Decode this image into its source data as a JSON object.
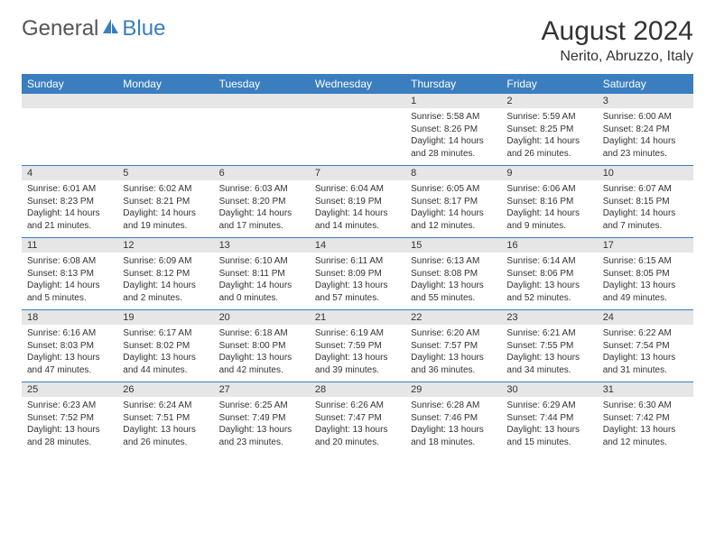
{
  "brand": {
    "general": "General",
    "blue": "Blue",
    "sail_color": "#3a7ebf"
  },
  "title": {
    "month": "August 2024",
    "location": "Nerito, Abruzzo, Italy"
  },
  "colors": {
    "header_bg": "#3a7ebf",
    "header_text": "#ffffff",
    "daynum_bg": "#e6e6e6",
    "cell_border": "#3a7ebf",
    "body_text": "#333333"
  },
  "weekdays": [
    "Sunday",
    "Monday",
    "Tuesday",
    "Wednesday",
    "Thursday",
    "Friday",
    "Saturday"
  ],
  "weeks": [
    [
      null,
      null,
      null,
      null,
      {
        "n": "1",
        "sr": "Sunrise: 5:58 AM",
        "ss": "Sunset: 8:26 PM",
        "d1": "Daylight: 14 hours",
        "d2": "and 28 minutes."
      },
      {
        "n": "2",
        "sr": "Sunrise: 5:59 AM",
        "ss": "Sunset: 8:25 PM",
        "d1": "Daylight: 14 hours",
        "d2": "and 26 minutes."
      },
      {
        "n": "3",
        "sr": "Sunrise: 6:00 AM",
        "ss": "Sunset: 8:24 PM",
        "d1": "Daylight: 14 hours",
        "d2": "and 23 minutes."
      }
    ],
    [
      {
        "n": "4",
        "sr": "Sunrise: 6:01 AM",
        "ss": "Sunset: 8:23 PM",
        "d1": "Daylight: 14 hours",
        "d2": "and 21 minutes."
      },
      {
        "n": "5",
        "sr": "Sunrise: 6:02 AM",
        "ss": "Sunset: 8:21 PM",
        "d1": "Daylight: 14 hours",
        "d2": "and 19 minutes."
      },
      {
        "n": "6",
        "sr": "Sunrise: 6:03 AM",
        "ss": "Sunset: 8:20 PM",
        "d1": "Daylight: 14 hours",
        "d2": "and 17 minutes."
      },
      {
        "n": "7",
        "sr": "Sunrise: 6:04 AM",
        "ss": "Sunset: 8:19 PM",
        "d1": "Daylight: 14 hours",
        "d2": "and 14 minutes."
      },
      {
        "n": "8",
        "sr": "Sunrise: 6:05 AM",
        "ss": "Sunset: 8:17 PM",
        "d1": "Daylight: 14 hours",
        "d2": "and 12 minutes."
      },
      {
        "n": "9",
        "sr": "Sunrise: 6:06 AM",
        "ss": "Sunset: 8:16 PM",
        "d1": "Daylight: 14 hours",
        "d2": "and 9 minutes."
      },
      {
        "n": "10",
        "sr": "Sunrise: 6:07 AM",
        "ss": "Sunset: 8:15 PM",
        "d1": "Daylight: 14 hours",
        "d2": "and 7 minutes."
      }
    ],
    [
      {
        "n": "11",
        "sr": "Sunrise: 6:08 AM",
        "ss": "Sunset: 8:13 PM",
        "d1": "Daylight: 14 hours",
        "d2": "and 5 minutes."
      },
      {
        "n": "12",
        "sr": "Sunrise: 6:09 AM",
        "ss": "Sunset: 8:12 PM",
        "d1": "Daylight: 14 hours",
        "d2": "and 2 minutes."
      },
      {
        "n": "13",
        "sr": "Sunrise: 6:10 AM",
        "ss": "Sunset: 8:11 PM",
        "d1": "Daylight: 14 hours",
        "d2": "and 0 minutes."
      },
      {
        "n": "14",
        "sr": "Sunrise: 6:11 AM",
        "ss": "Sunset: 8:09 PM",
        "d1": "Daylight: 13 hours",
        "d2": "and 57 minutes."
      },
      {
        "n": "15",
        "sr": "Sunrise: 6:13 AM",
        "ss": "Sunset: 8:08 PM",
        "d1": "Daylight: 13 hours",
        "d2": "and 55 minutes."
      },
      {
        "n": "16",
        "sr": "Sunrise: 6:14 AM",
        "ss": "Sunset: 8:06 PM",
        "d1": "Daylight: 13 hours",
        "d2": "and 52 minutes."
      },
      {
        "n": "17",
        "sr": "Sunrise: 6:15 AM",
        "ss": "Sunset: 8:05 PM",
        "d1": "Daylight: 13 hours",
        "d2": "and 49 minutes."
      }
    ],
    [
      {
        "n": "18",
        "sr": "Sunrise: 6:16 AM",
        "ss": "Sunset: 8:03 PM",
        "d1": "Daylight: 13 hours",
        "d2": "and 47 minutes."
      },
      {
        "n": "19",
        "sr": "Sunrise: 6:17 AM",
        "ss": "Sunset: 8:02 PM",
        "d1": "Daylight: 13 hours",
        "d2": "and 44 minutes."
      },
      {
        "n": "20",
        "sr": "Sunrise: 6:18 AM",
        "ss": "Sunset: 8:00 PM",
        "d1": "Daylight: 13 hours",
        "d2": "and 42 minutes."
      },
      {
        "n": "21",
        "sr": "Sunrise: 6:19 AM",
        "ss": "Sunset: 7:59 PM",
        "d1": "Daylight: 13 hours",
        "d2": "and 39 minutes."
      },
      {
        "n": "22",
        "sr": "Sunrise: 6:20 AM",
        "ss": "Sunset: 7:57 PM",
        "d1": "Daylight: 13 hours",
        "d2": "and 36 minutes."
      },
      {
        "n": "23",
        "sr": "Sunrise: 6:21 AM",
        "ss": "Sunset: 7:55 PM",
        "d1": "Daylight: 13 hours",
        "d2": "and 34 minutes."
      },
      {
        "n": "24",
        "sr": "Sunrise: 6:22 AM",
        "ss": "Sunset: 7:54 PM",
        "d1": "Daylight: 13 hours",
        "d2": "and 31 minutes."
      }
    ],
    [
      {
        "n": "25",
        "sr": "Sunrise: 6:23 AM",
        "ss": "Sunset: 7:52 PM",
        "d1": "Daylight: 13 hours",
        "d2": "and 28 minutes."
      },
      {
        "n": "26",
        "sr": "Sunrise: 6:24 AM",
        "ss": "Sunset: 7:51 PM",
        "d1": "Daylight: 13 hours",
        "d2": "and 26 minutes."
      },
      {
        "n": "27",
        "sr": "Sunrise: 6:25 AM",
        "ss": "Sunset: 7:49 PM",
        "d1": "Daylight: 13 hours",
        "d2": "and 23 minutes."
      },
      {
        "n": "28",
        "sr": "Sunrise: 6:26 AM",
        "ss": "Sunset: 7:47 PM",
        "d1": "Daylight: 13 hours",
        "d2": "and 20 minutes."
      },
      {
        "n": "29",
        "sr": "Sunrise: 6:28 AM",
        "ss": "Sunset: 7:46 PM",
        "d1": "Daylight: 13 hours",
        "d2": "and 18 minutes."
      },
      {
        "n": "30",
        "sr": "Sunrise: 6:29 AM",
        "ss": "Sunset: 7:44 PM",
        "d1": "Daylight: 13 hours",
        "d2": "and 15 minutes."
      },
      {
        "n": "31",
        "sr": "Sunrise: 6:30 AM",
        "ss": "Sunset: 7:42 PM",
        "d1": "Daylight: 13 hours",
        "d2": "and 12 minutes."
      }
    ]
  ]
}
